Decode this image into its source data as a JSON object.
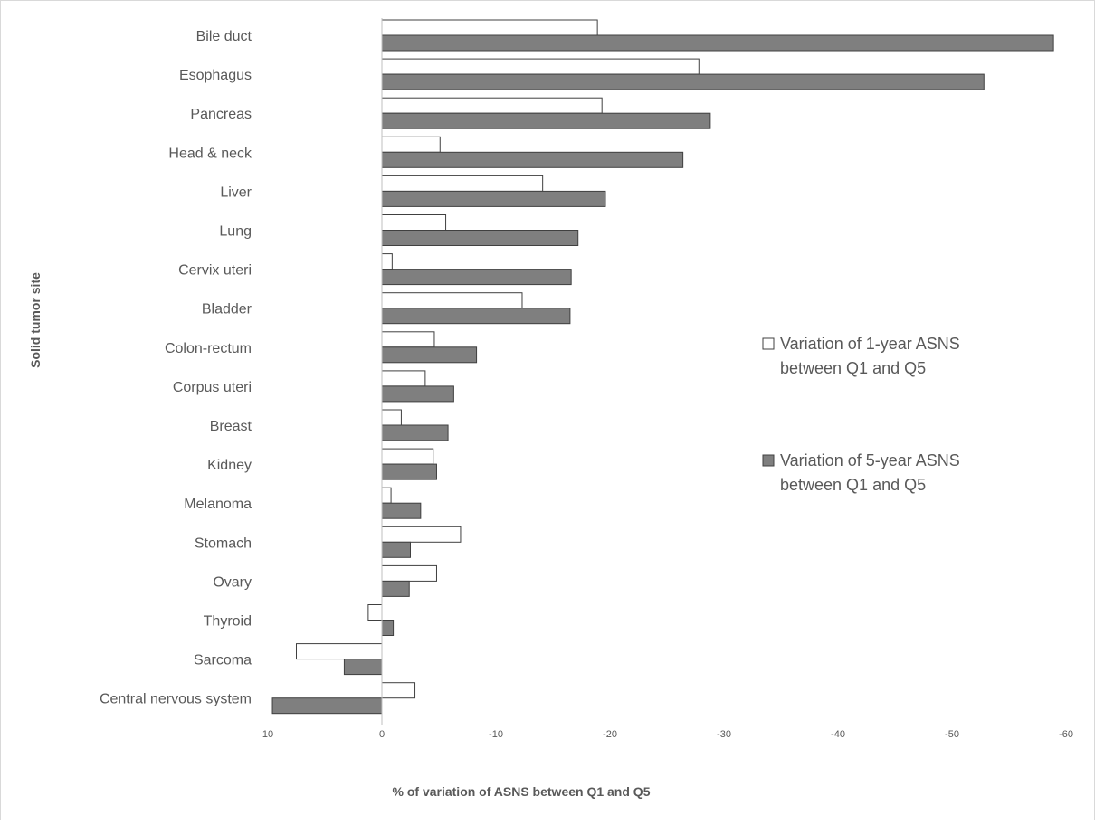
{
  "chart_data": {
    "type": "bar",
    "orientation": "horizontal",
    "x_axis_reversed": true,
    "title": "",
    "xlabel": "% of variation of ASNS between Q1 and Q5",
    "ylabel": "Solid tumor site",
    "xlim": [
      10,
      -60
    ],
    "xticks": [
      10,
      0,
      -10,
      -20,
      -30,
      -40,
      -50,
      -60
    ],
    "xtick_labels": [
      "10",
      "0",
      "-10",
      "-20",
      "-30",
      "-40",
      "-50",
      "-60"
    ],
    "categories": [
      "Bile duct",
      "Esophagus",
      "Pancreas",
      "Head & neck",
      "Liver",
      "Lung",
      "Cervix uteri",
      "Bladder",
      "Colon-rectum",
      "Corpus uteri",
      "Breast",
      "Kidney",
      "Melanoma",
      "Stomach",
      "Ovary",
      "Thyroid",
      "Sarcoma",
      "Central nervous system"
    ],
    "series": [
      {
        "name": "Variation of 1-year ASNS between Q1 and Q5",
        "color": "#ffffff",
        "values": [
          -18.9,
          -27.8,
          -19.3,
          -5.1,
          -14.1,
          -5.6,
          -0.9,
          -12.3,
          -4.6,
          -3.8,
          -1.7,
          -4.5,
          -0.8,
          -6.9,
          -4.8,
          1.2,
          7.5,
          -2.9
        ]
      },
      {
        "name": "Variation of 5-year ASNS between Q1 and Q5",
        "color": "#7f7f7f",
        "values": [
          -58.9,
          -52.8,
          -28.8,
          -26.4,
          -19.6,
          -17.2,
          -16.6,
          -16.5,
          -8.3,
          -6.3,
          -5.8,
          -4.8,
          -3.4,
          -2.5,
          -2.4,
          -1.0,
          3.3,
          9.6
        ]
      }
    ],
    "legend_position": "right-middle",
    "legend_labels": [
      [
        "Variation of 1-year ASNS",
        "between Q1 and Q5"
      ],
      [
        "Variation of 5-year ASNS",
        "between Q1 and Q5"
      ]
    ],
    "grid": false
  }
}
